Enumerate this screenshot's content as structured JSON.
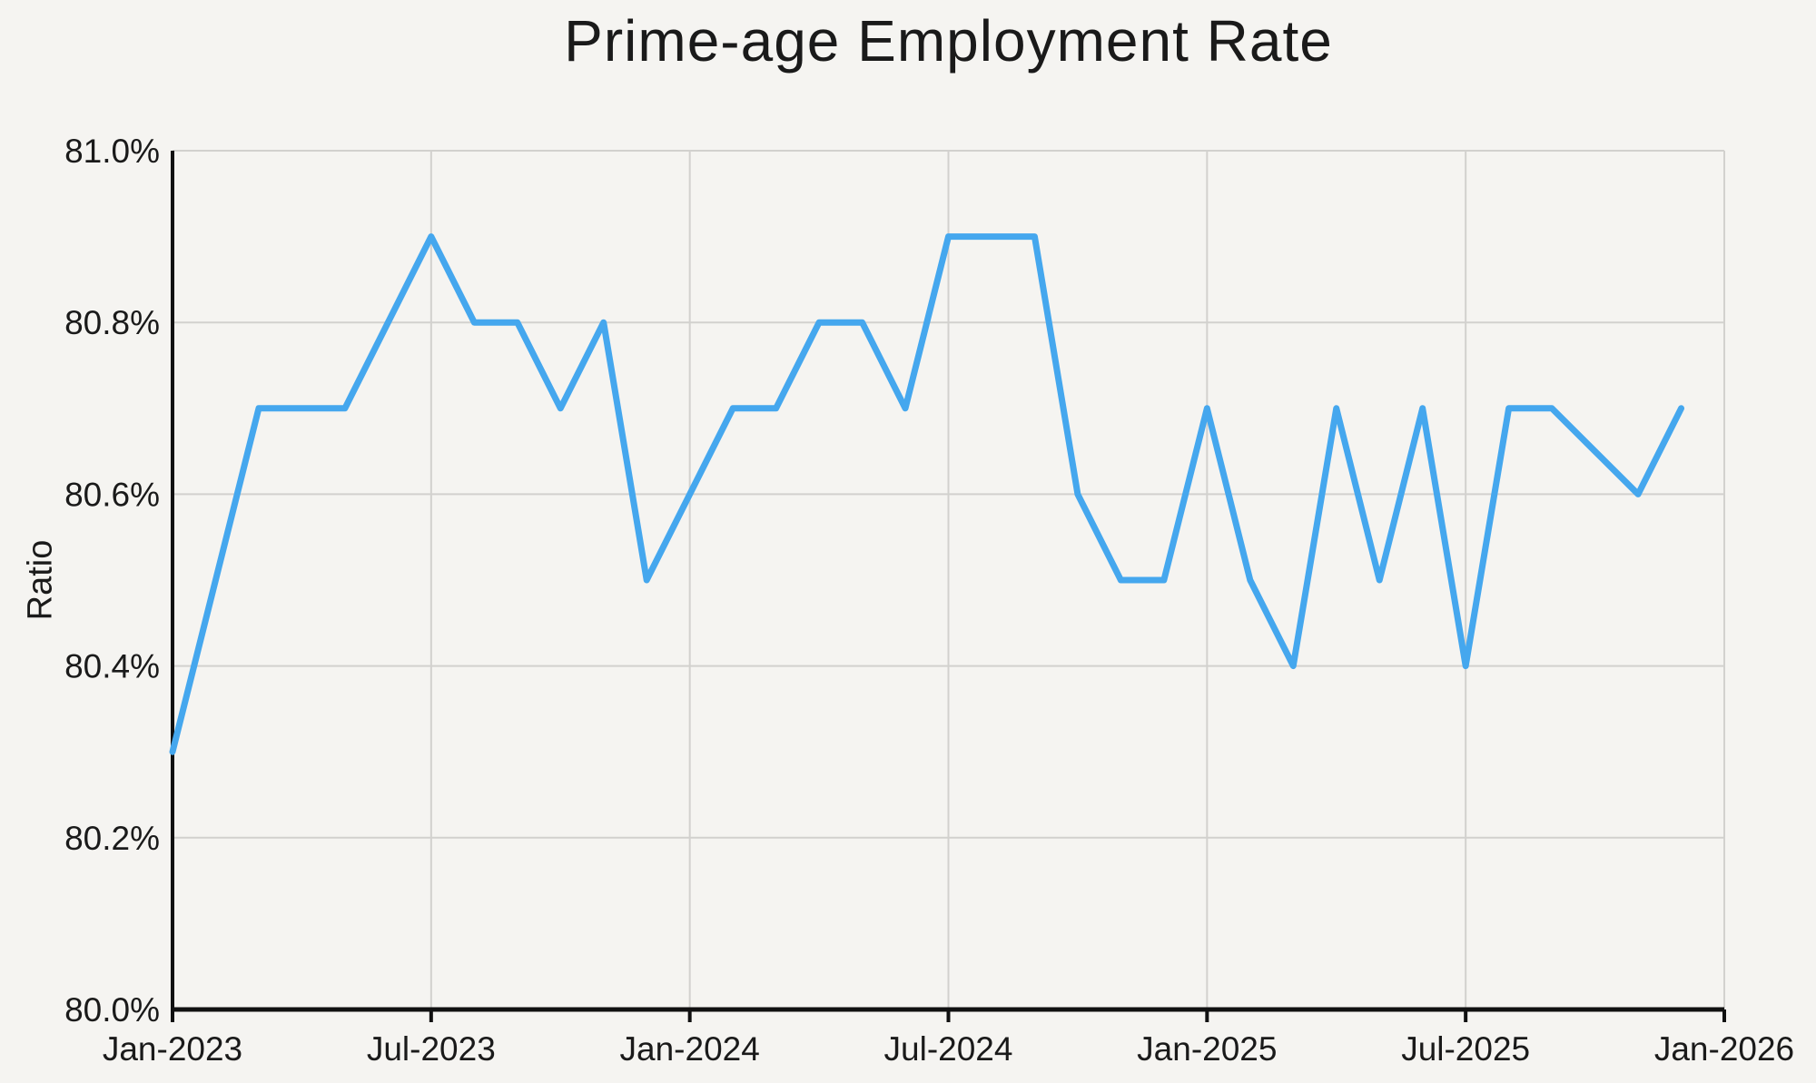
{
  "chart_data": {
    "type": "line",
    "title": "Prime-age Employment Rate",
    "ylabel": "Ratio",
    "xlabel": "",
    "x": [
      "Jan-2023",
      "Feb-2023",
      "Mar-2023",
      "Apr-2023",
      "May-2023",
      "Jun-2023",
      "Jul-2023",
      "Aug-2023",
      "Sep-2023",
      "Oct-2023",
      "Nov-2023",
      "Dec-2023",
      "Jan-2024",
      "Feb-2024",
      "Mar-2024",
      "Apr-2024",
      "May-2024",
      "Jun-2024",
      "Jul-2024",
      "Aug-2024",
      "Sep-2024",
      "Oct-2024",
      "Nov-2024",
      "Dec-2024",
      "Jan-2025",
      "Feb-2025",
      "Mar-2025",
      "Apr-2025",
      "May-2025",
      "Jun-2025",
      "Jul-2025",
      "Aug-2025",
      "Sep-2025",
      "Oct-2025",
      "Nov-2025",
      "Dec-2025"
    ],
    "values": [
      80.3,
      80.5,
      80.7,
      80.7,
      80.7,
      80.8,
      80.9,
      80.8,
      80.8,
      80.7,
      80.8,
      80.5,
      80.6,
      80.7,
      80.7,
      80.8,
      80.8,
      80.7,
      80.9,
      80.9,
      80.9,
      80.6,
      80.5,
      80.5,
      80.7,
      80.5,
      80.4,
      80.7,
      80.5,
      80.7,
      80.4,
      80.7,
      80.7,
      80.65,
      80.6,
      80.7
    ],
    "ylim": [
      80.0,
      81.0
    ],
    "xlim_months": 36,
    "ytick_values": [
      80.0,
      80.2,
      80.4,
      80.6,
      80.8,
      81.0
    ],
    "ytick_labels": [
      "80.0%",
      "80.2%",
      "80.4%",
      "80.6%",
      "80.8%",
      "81.0%"
    ],
    "xtick_month_index": [
      0,
      6,
      12,
      18,
      24,
      30,
      36
    ],
    "xtick_labels": [
      "Jan-2023",
      "Jul-2023",
      "Jan-2024",
      "Jul-2024",
      "Jan-2025",
      "Jul-2025",
      "Jan-2026"
    ],
    "grid": true,
    "legend_shown": false,
    "line_color": "#45a7ee",
    "grid_color": "#d2d1ce",
    "axis_color": "#111111",
    "text_color": "#1a1a1a",
    "background_color": "#f5f4f1"
  }
}
